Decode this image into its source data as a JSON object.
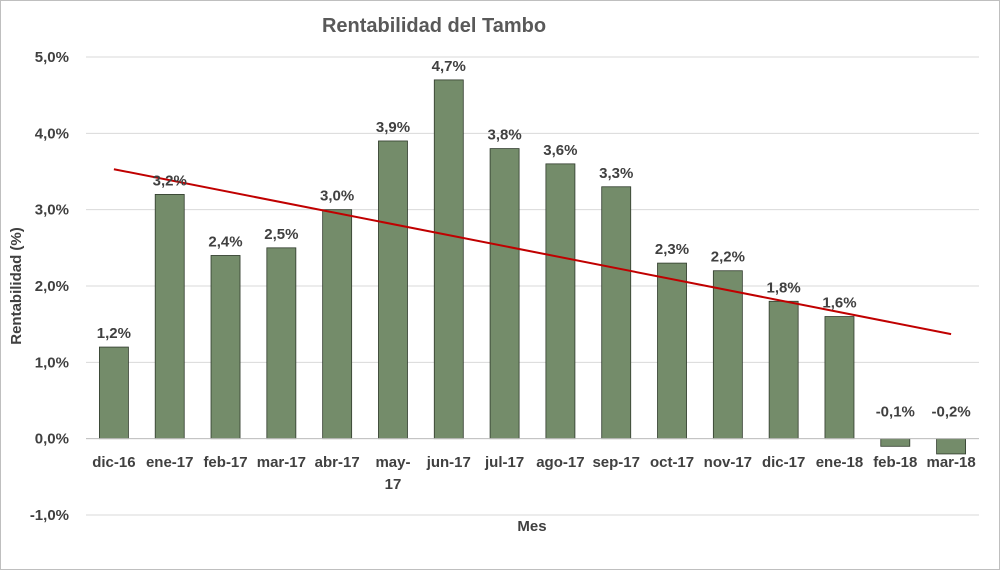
{
  "chart_data": {
    "type": "bar",
    "title": "Rentabilidad del Tambo",
    "xlabel": "Mes",
    "ylabel": "Rentabilidad (%)",
    "categories": [
      "dic-16",
      "ene-17",
      "feb-17",
      "mar-17",
      "abr-17",
      "may-17",
      "jun-17",
      "jul-17",
      "ago-17",
      "sep-17",
      "oct-17",
      "nov-17",
      "dic-17",
      "ene-18",
      "feb-18",
      "mar-18"
    ],
    "category_labels": [
      [
        "dic-16"
      ],
      [
        "ene-17"
      ],
      [
        "feb-17"
      ],
      [
        "mar-17"
      ],
      [
        "abr-17"
      ],
      [
        "may-",
        "17"
      ],
      [
        "jun-17"
      ],
      [
        "jul-17"
      ],
      [
        "ago-17"
      ],
      [
        "sep-17"
      ],
      [
        "oct-17"
      ],
      [
        "nov-17"
      ],
      [
        "dic-17"
      ],
      [
        "ene-18"
      ],
      [
        "feb-18"
      ],
      [
        "mar-18"
      ]
    ],
    "values": [
      1.2,
      3.2,
      2.4,
      2.5,
      3.0,
      3.9,
      4.7,
      3.8,
      3.6,
      3.3,
      2.3,
      2.2,
      1.8,
      1.6,
      -0.1,
      -0.2
    ],
    "data_labels": [
      "1,2%",
      "3,2%",
      "2,4%",
      "2,5%",
      "3,0%",
      "3,9%",
      "4,7%",
      "3,8%",
      "3,6%",
      "3,3%",
      "2,3%",
      "2,2%",
      "1,8%",
      "1,6%",
      "-0,1%",
      "-0,2%"
    ],
    "ylim": [
      -1.0,
      5.0
    ],
    "yticks": [
      -1.0,
      0.0,
      1.0,
      2.0,
      3.0,
      4.0,
      5.0
    ],
    "ytick_labels": [
      "-1,0%",
      "0,0%",
      "1,0%",
      "2,0%",
      "3,0%",
      "4,0%",
      "5,0%"
    ],
    "grid": true,
    "trendline": {
      "type": "linear",
      "start_value": 3.53,
      "end_value": 1.37
    },
    "colors": {
      "bar": "#748c6a",
      "bar_border": "#2f3a2b",
      "trendline": "#c00000",
      "grid": "#d9d9d9"
    }
  }
}
